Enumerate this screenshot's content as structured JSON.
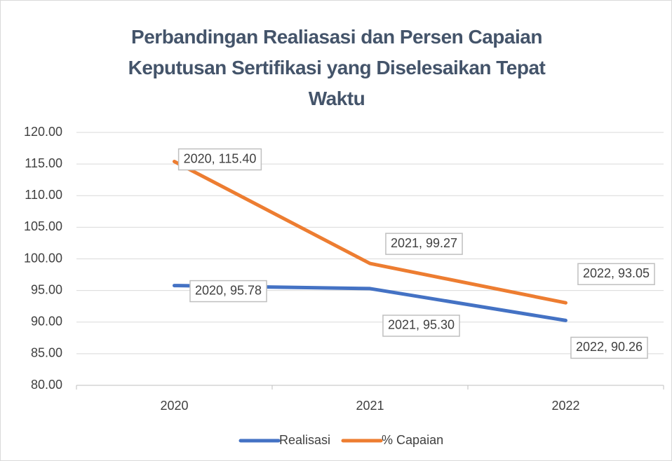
{
  "chart_data": {
    "type": "line",
    "title": "Perbandingan Realiasasi dan Persen Capaian Keputusan Sertifikasi yang Diselesaikan Tepat Waktu",
    "categories": [
      "2020",
      "2021",
      "2022"
    ],
    "series": [
      {
        "name": "Realisasi",
        "color": "#4472c4",
        "values": [
          95.78,
          95.3,
          90.26
        ],
        "value_labels": [
          "2020, 95.78",
          "2021, 95.30",
          "2022, 90.26"
        ]
      },
      {
        "name": "% Capaian",
        "color": "#ed7d31",
        "values": [
          115.4,
          99.27,
          93.05
        ],
        "value_labels": [
          "2020, 115.40",
          "2021, 99.27",
          "2022, 93.05"
        ]
      }
    ],
    "ylim": [
      80,
      120
    ],
    "yticks": [
      {
        "value": 80,
        "label": "80.00"
      },
      {
        "value": 85,
        "label": "85.00"
      },
      {
        "value": 90,
        "label": "90.00"
      },
      {
        "value": 95,
        "label": "95.00"
      },
      {
        "value": 100,
        "label": "100.00"
      },
      {
        "value": 105,
        "label": "105.00"
      },
      {
        "value": 110,
        "label": "110.00"
      },
      {
        "value": 115,
        "label": "115.00"
      },
      {
        "value": 120,
        "label": "120.00"
      }
    ],
    "grid": true,
    "legend": "bottom"
  }
}
